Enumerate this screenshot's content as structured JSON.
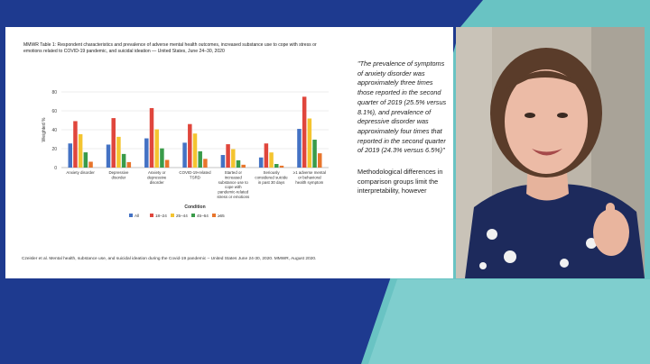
{
  "slide": {
    "table_title": "MMWR Table 1: Respondent characteristics and prevalence of adverse mental health outcomes, increased substance use to cope with stress or emotions related to COVID-19 pandemic, and suicidal ideation — United States, June 24–30, 2020",
    "quote": "\"The prevalence of symptoms of anxiety disorder was approximately three times those reported in the second quarter of 2019 (25.5% versus 8.1%), and prevalence of depressive disorder was approximately four times that reported in the second quarter of 2019 (24.3% versus 6.5%)\"",
    "note": "Methodological differences in comparison groups limit the interpretability, however",
    "citation": "Czeisler et al. Mental health, substance use, and suicidal ideation during the Covid-19 pandemic – United States June 24-30, 2020. MMWR, August 2020."
  },
  "chart_data": {
    "type": "bar",
    "title": "",
    "xlabel": "Condition",
    "ylabel": "Weighted %",
    "ylim": [
      0,
      80
    ],
    "yticks": [
      0,
      20,
      40,
      60,
      80
    ],
    "grid": true,
    "legend_position": "bottom",
    "categories": [
      [
        "Anxiety disorder"
      ],
      [
        "Depressive",
        "disorder"
      ],
      [
        "Anxiety or",
        "depressive",
        "disorder"
      ],
      [
        "COVID-19-related",
        "TSRD"
      ],
      [
        "Started or",
        "increased",
        "substance use to",
        "cope with",
        "pandemic-related",
        "stress or emotions"
      ],
      [
        "Seriously",
        "considered suicide",
        "in past 30 days"
      ],
      [
        "≥1 adverse mental",
        "or behavioral",
        "health symptom"
      ]
    ],
    "series": [
      {
        "name": "All",
        "color": "#4472c4",
        "values": [
          25.5,
          24.3,
          30.9,
          26.3,
          13.3,
          10.7,
          40.9
        ]
      },
      {
        "name": "18–24",
        "color": "#e0463c",
        "values": [
          49.1,
          52.3,
          62.9,
          46.0,
          24.7,
          25.5,
          74.9
        ]
      },
      {
        "name": "25–44",
        "color": "#f4c430",
        "values": [
          35.3,
          32.5,
          40.4,
          36.0,
          19.5,
          16.0,
          51.9
        ]
      },
      {
        "name": "45–64",
        "color": "#3a9b4a",
        "values": [
          16.1,
          14.4,
          20.3,
          17.2,
          7.7,
          3.8,
          29.5
        ]
      },
      {
        "name": "≥65",
        "color": "#e8752c",
        "values": [
          6.2,
          5.8,
          8.1,
          9.2,
          3.0,
          2.0,
          15.1
        ]
      }
    ]
  }
}
